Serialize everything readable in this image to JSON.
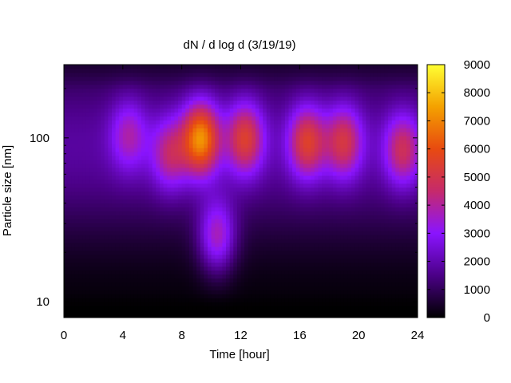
{
  "chart_data": {
    "type": "heatmap",
    "title": "dN / d log d (3/19/19)",
    "xlabel": "Time [hour]",
    "ylabel": "Particle size [nm]",
    "x_range": [
      0,
      24
    ],
    "x_ticks": [
      0,
      4,
      8,
      12,
      16,
      20,
      24
    ],
    "y_scale": "log",
    "y_range": [
      8,
      280
    ],
    "y_ticks": [
      10,
      100
    ],
    "colorbar": {
      "range": [
        0,
        9000
      ],
      "ticks": [
        0,
        1000,
        2000,
        3000,
        4000,
        5000,
        6000,
        7000,
        8000,
        9000
      ],
      "colormap": [
        "#000000",
        "#4b0087",
        "#8a14ff",
        "#c62a6b",
        "#e84a10",
        "#f4a100",
        "#ffff33"
      ]
    },
    "grid": false,
    "background_level": 1800,
    "features": [
      {
        "time": 4.4,
        "size_nm": 105,
        "peak": 2100
      },
      {
        "time": 7.2,
        "size_nm": 80,
        "peak": 2600
      },
      {
        "time": 9.3,
        "size_nm": 100,
        "peak": 5400
      },
      {
        "time": 10.4,
        "size_nm": 25,
        "peak": 3000
      },
      {
        "time": 12.3,
        "size_nm": 100,
        "peak": 3700
      },
      {
        "time": 16.5,
        "size_nm": 95,
        "peak": 3700
      },
      {
        "time": 19.0,
        "size_nm": 95,
        "peak": 3300
      },
      {
        "time": 23.0,
        "size_nm": 85,
        "peak": 3000
      }
    ]
  }
}
